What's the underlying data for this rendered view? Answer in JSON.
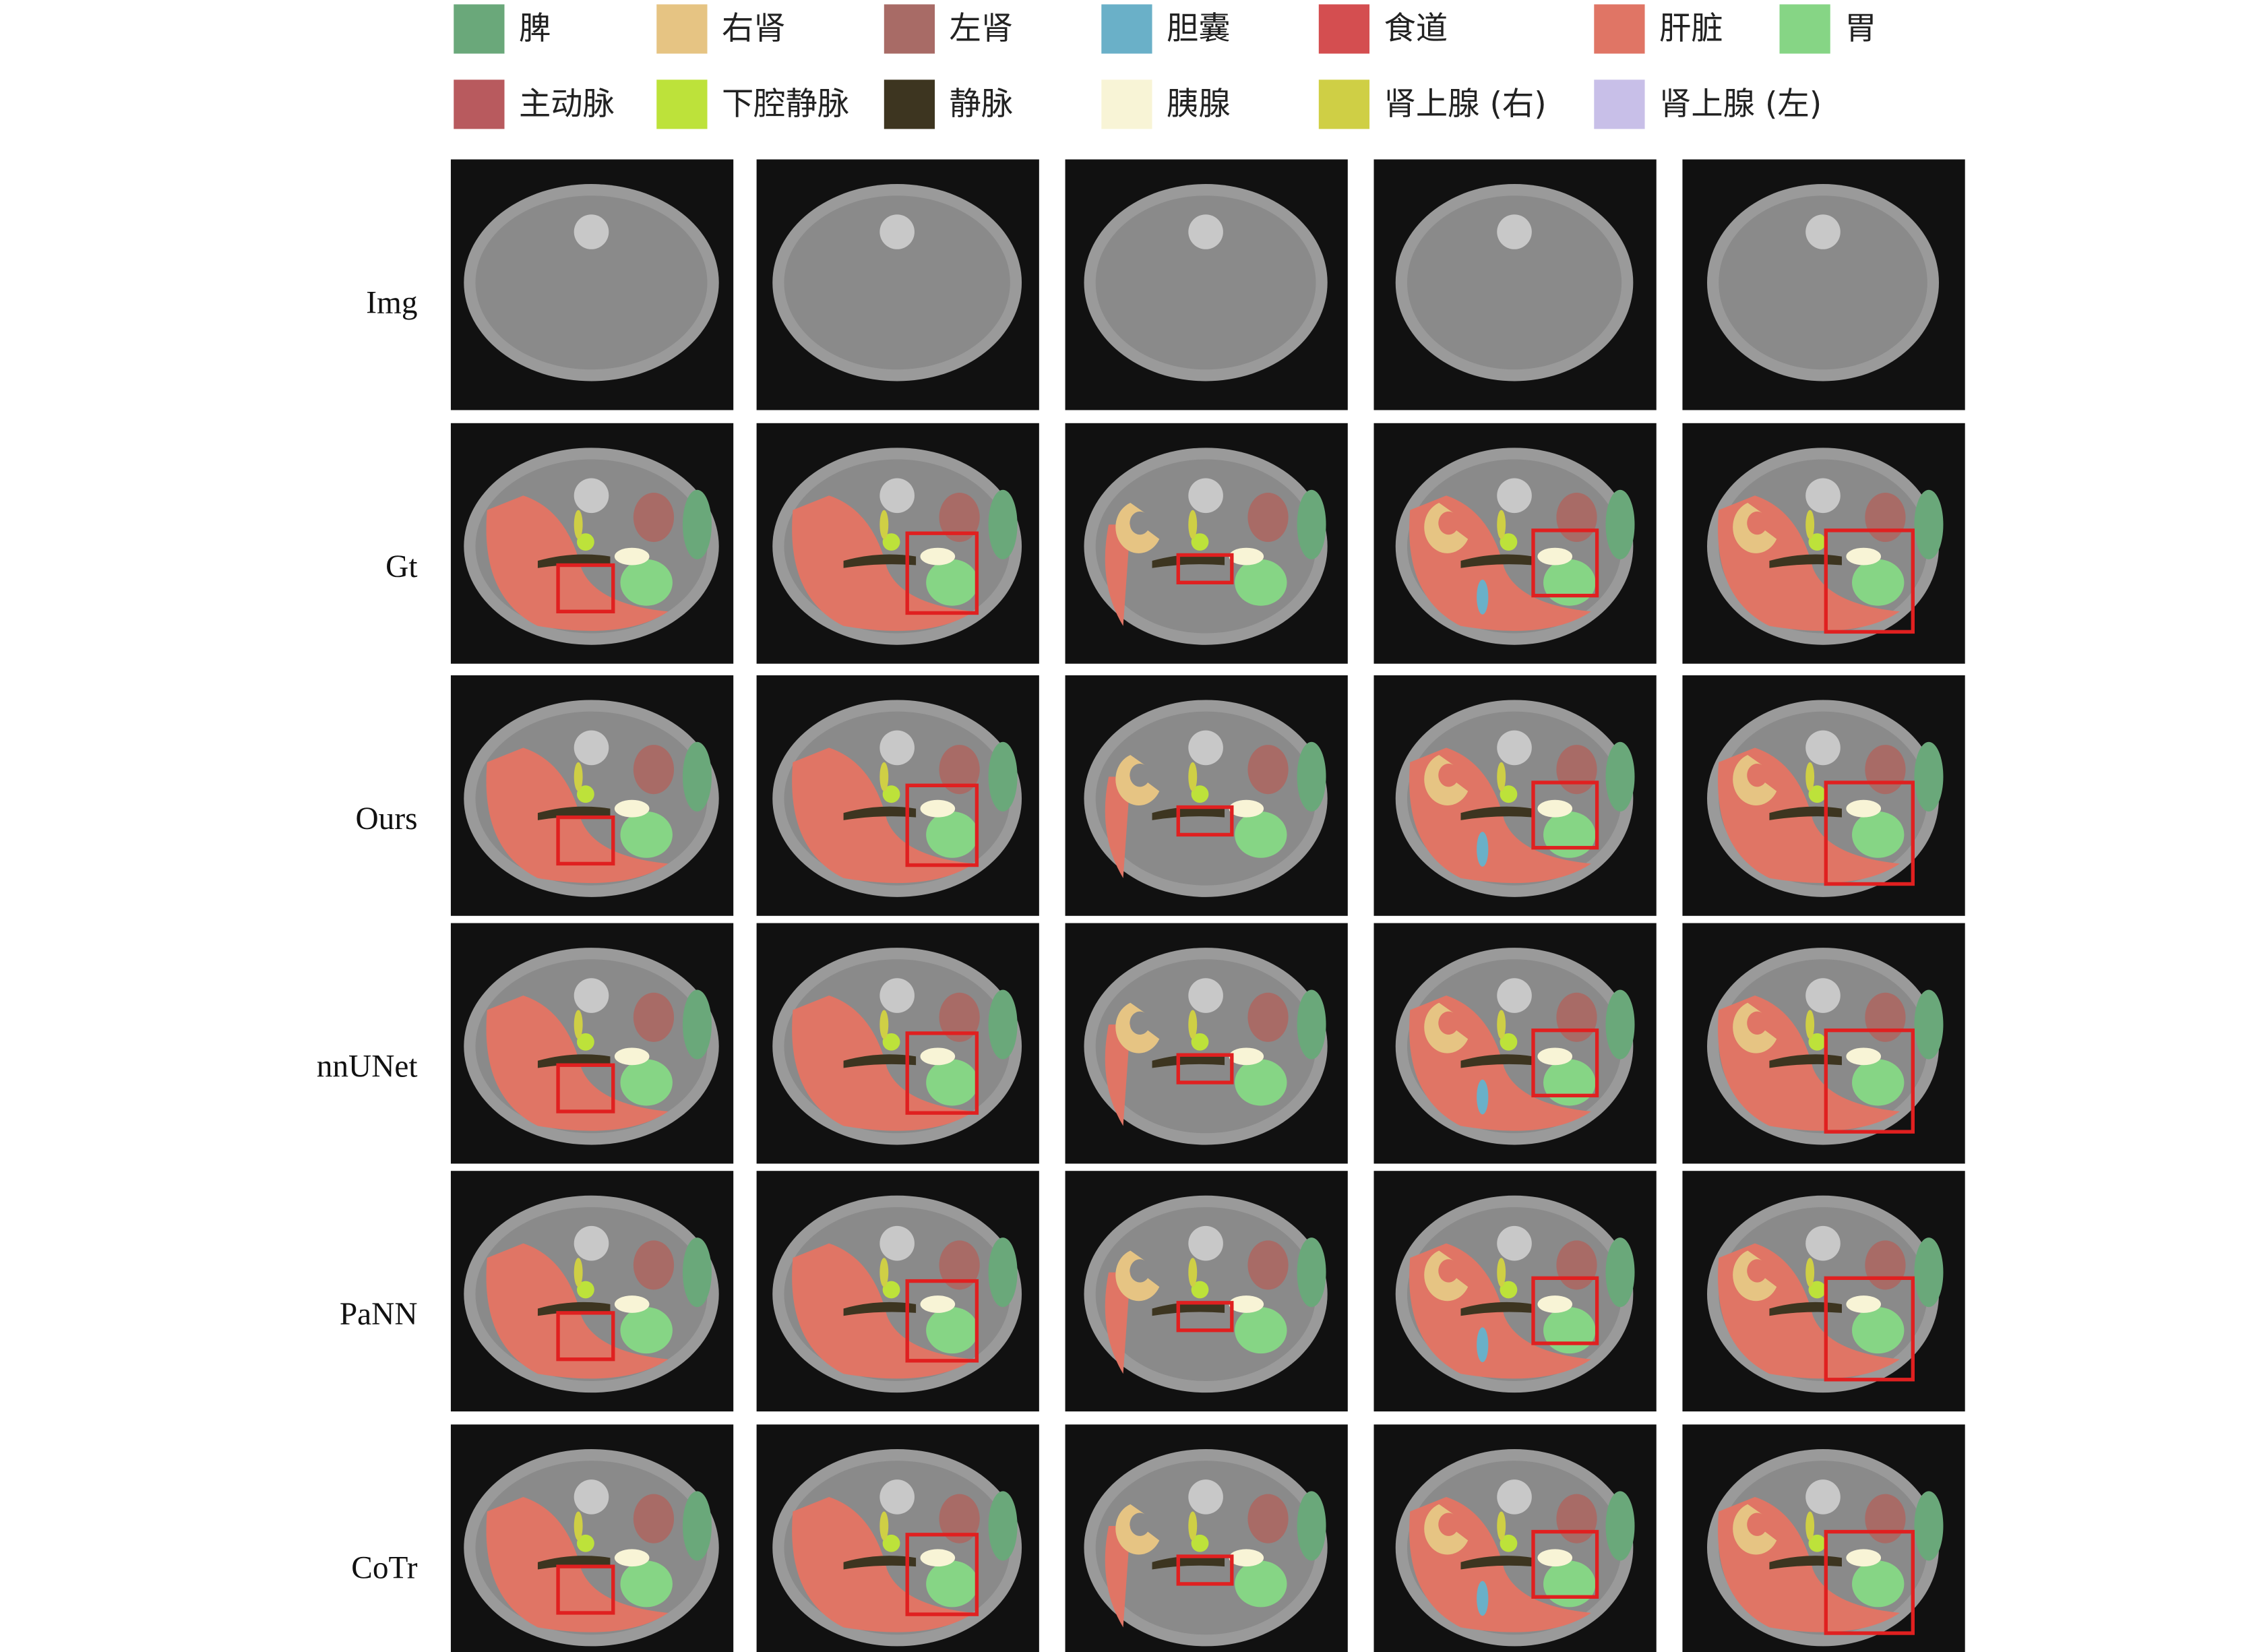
{
  "legend": [
    {
      "label": "脾",
      "color": "#6aa87a"
    },
    {
      "label": "右肾",
      "color": "#e6c483"
    },
    {
      "label": "左肾",
      "color": "#a86b66"
    },
    {
      "label": "胆囊",
      "color": "#6ab0c8"
    },
    {
      "label": "食道",
      "color": "#d44e50"
    },
    {
      "label": "肝脏",
      "color": "#e07565"
    },
    {
      "label": "胃",
      "color": "#86d585"
    },
    {
      "label": "主动脉",
      "color": "#b85a5e"
    },
    {
      "label": "下腔静脉",
      "color": "#bde23a"
    },
    {
      "label": "静脉",
      "color": "#3d3520"
    },
    {
      "label": "胰腺",
      "color": "#f8f4d6"
    },
    {
      "label": "肾上腺 (右)",
      "color": "#cfcf45"
    },
    {
      "label": "肾上腺 (左)",
      "color": "#c8bfe8"
    }
  ],
  "row_labels": [
    "Img",
    "Gt",
    "Ours",
    "nnUNet",
    "PaNN",
    "CoTr"
  ]
}
